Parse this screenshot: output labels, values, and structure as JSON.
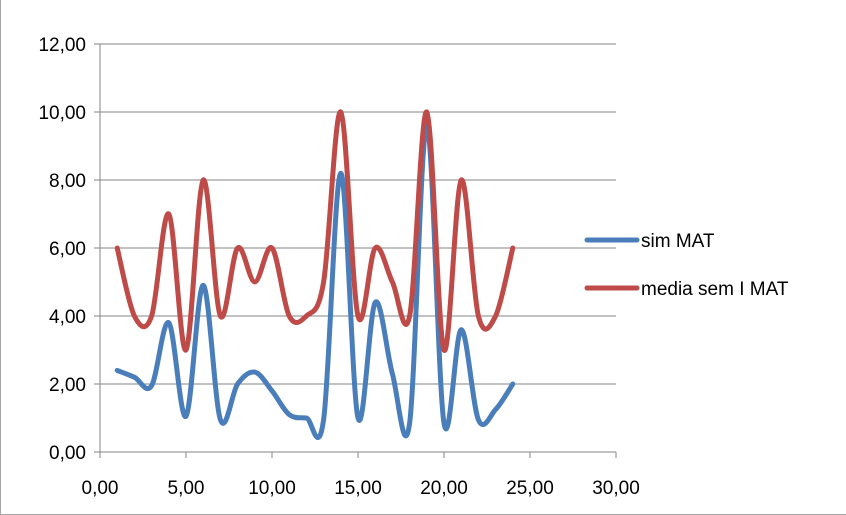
{
  "chart_data": {
    "type": "scatter",
    "xlim": [
      0,
      30
    ],
    "ylim": [
      0,
      12
    ],
    "x_ticks": [
      "0,00",
      "5,00",
      "10,00",
      "15,00",
      "20,00",
      "25,00",
      "30,00"
    ],
    "y_ticks": [
      "0,00",
      "2,00",
      "4,00",
      "6,00",
      "8,00",
      "10,00",
      "12,00"
    ],
    "grid": "horizontal",
    "legend_position": "right",
    "series": [
      {
        "name": "sim MAT",
        "color": "#4a7ebb",
        "x": [
          1,
          2,
          3,
          4,
          5,
          6,
          7,
          8,
          9,
          10,
          11,
          12,
          13,
          14,
          15,
          16,
          17,
          18,
          19,
          20,
          21,
          22,
          23,
          24
        ],
        "y": [
          2.4,
          2.2,
          1.95,
          3.8,
          1.05,
          4.9,
          0.95,
          2.0,
          2.35,
          1.8,
          1.1,
          1.0,
          0.95,
          8.2,
          1.0,
          4.4,
          2.3,
          0.85,
          9.6,
          0.85,
          3.6,
          0.95,
          1.25,
          2.0
        ]
      },
      {
        "name": "media sem I MAT",
        "color": "#be4b48",
        "x": [
          1,
          2,
          3,
          4,
          5,
          6,
          7,
          8,
          9,
          10,
          11,
          12,
          13,
          14,
          15,
          16,
          17,
          18,
          19,
          20,
          21,
          22,
          23,
          24
        ],
        "y": [
          6.0,
          4.0,
          4.0,
          7.0,
          3.0,
          8.0,
          4.0,
          6.0,
          5.0,
          6.0,
          4.0,
          4.0,
          5.0,
          10.0,
          4.0,
          6.0,
          5.0,
          4.0,
          10.0,
          3.0,
          8.0,
          4.0,
          4.0,
          6.0
        ]
      }
    ]
  }
}
